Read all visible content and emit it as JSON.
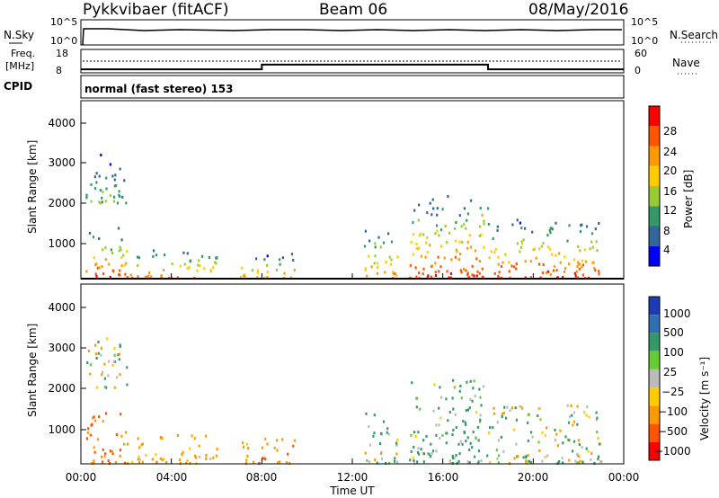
{
  "header": {
    "station": "Pykkvibaer (fitACF)",
    "beam": "Beam 06",
    "date": "08/May/2016"
  },
  "top_panels": {
    "nsky_label": "N.Sky",
    "nsearch_label": "N.Search",
    "nsky_ticks": [
      "10^5",
      "10^0"
    ],
    "nsearch_ticks": [
      "10^5",
      "10^0"
    ],
    "freq_label_1": "Freq.",
    "freq_label_2": "[MHz]",
    "freq_ticks": [
      "18",
      "8"
    ],
    "nave_ticks": [
      "60",
      "0"
    ],
    "nave_label": "Nave",
    "cpid_label": "CPID",
    "cpid_text": "normal (fast stereo) 153"
  },
  "power_panel": {
    "ylabel": "Slant Range [km]",
    "yticks": [
      "4000",
      "3000",
      "2000",
      "1000"
    ],
    "colorbar_label": "Power [dB]",
    "colorbar_ticks": [
      "28",
      "24",
      "20",
      "16",
      "12",
      "8",
      "4"
    ],
    "colorbar_colors": [
      "#ff0000",
      "#ff5500",
      "#ff9900",
      "#ffcc00",
      "#99cc33",
      "#339966",
      "#336699",
      "#0000ff"
    ]
  },
  "velocity_panel": {
    "ylabel": "Slant Range [km]",
    "yticks": [
      "4000",
      "3000",
      "2000",
      "1000"
    ],
    "colorbar_label": "Velocity [m s⁻¹]",
    "colorbar_ticks": [
      "1000",
      "500",
      "100",
      "25",
      "−25",
      "−100",
      "−500",
      "−1000"
    ],
    "colorbar_colors": [
      "#1f3bb3",
      "#2f6fb3",
      "#339966",
      "#66cc33",
      "#bbbbbb",
      "#ffcc00",
      "#ff9900",
      "#ff5500",
      "#ff0000"
    ]
  },
  "time_axis": {
    "ticks": [
      "00:00",
      "04:00",
      "08:00",
      "12:00",
      "16:00",
      "20:00",
      "00:00"
    ],
    "label": "Time UT"
  },
  "chart_data": {
    "type": "heatmap",
    "title": "Pykkvibaer (fitACF) Beam 06 08/May/2016",
    "x_range_hours": [
      0,
      24
    ],
    "y_range_km": [
      180,
      4500
    ],
    "freq_mhz": [
      {
        "from_hour": 0,
        "to_hour": 8,
        "value": 9.5
      },
      {
        "from_hour": 8,
        "to_hour": 18,
        "value": 11.5
      },
      {
        "from_hour": 18,
        "to_hour": 24,
        "value": 9.5
      }
    ],
    "power_clusters": [
      {
        "t0": 0.2,
        "t1": 2.0,
        "r0": 180,
        "r1": 1400,
        "peak_db": 28
      },
      {
        "t0": 0.2,
        "t1": 2.0,
        "r0": 2000,
        "r1": 3200,
        "peak_db": 12
      },
      {
        "t0": 2.0,
        "t1": 6.0,
        "r0": 180,
        "r1": 900,
        "peak_db": 24
      },
      {
        "t0": 7.0,
        "t1": 9.5,
        "r0": 180,
        "r1": 800,
        "peak_db": 22
      },
      {
        "t0": 12.5,
        "t1": 14.0,
        "r0": 180,
        "r1": 1400,
        "peak_db": 24
      },
      {
        "t0": 14.5,
        "t1": 18.0,
        "r0": 180,
        "r1": 2200,
        "peak_db": 28
      },
      {
        "t0": 18.0,
        "t1": 23.0,
        "r0": 180,
        "r1": 1600,
        "peak_db": 28
      }
    ],
    "velocity_clusters": [
      {
        "t0": 0.2,
        "t1": 2.0,
        "r0": 180,
        "r1": 1400,
        "v_mps": -300
      },
      {
        "t0": 0.2,
        "t1": 2.0,
        "r0": 2000,
        "r1": 3200,
        "v_mps": 0
      },
      {
        "t0": 2.0,
        "t1": 6.0,
        "r0": 180,
        "r1": 900,
        "v_mps": -150
      },
      {
        "t0": 7.0,
        "t1": 9.5,
        "r0": 180,
        "r1": 800,
        "v_mps": -200
      },
      {
        "t0": 12.5,
        "t1": 14.0,
        "r0": 180,
        "r1": 1400,
        "v_mps": 50
      },
      {
        "t0": 14.5,
        "t1": 18.0,
        "r0": 180,
        "r1": 2200,
        "v_mps": 100
      },
      {
        "t0": 18.0,
        "t1": 23.0,
        "r0": 180,
        "r1": 1600,
        "v_mps": 0
      }
    ]
  }
}
